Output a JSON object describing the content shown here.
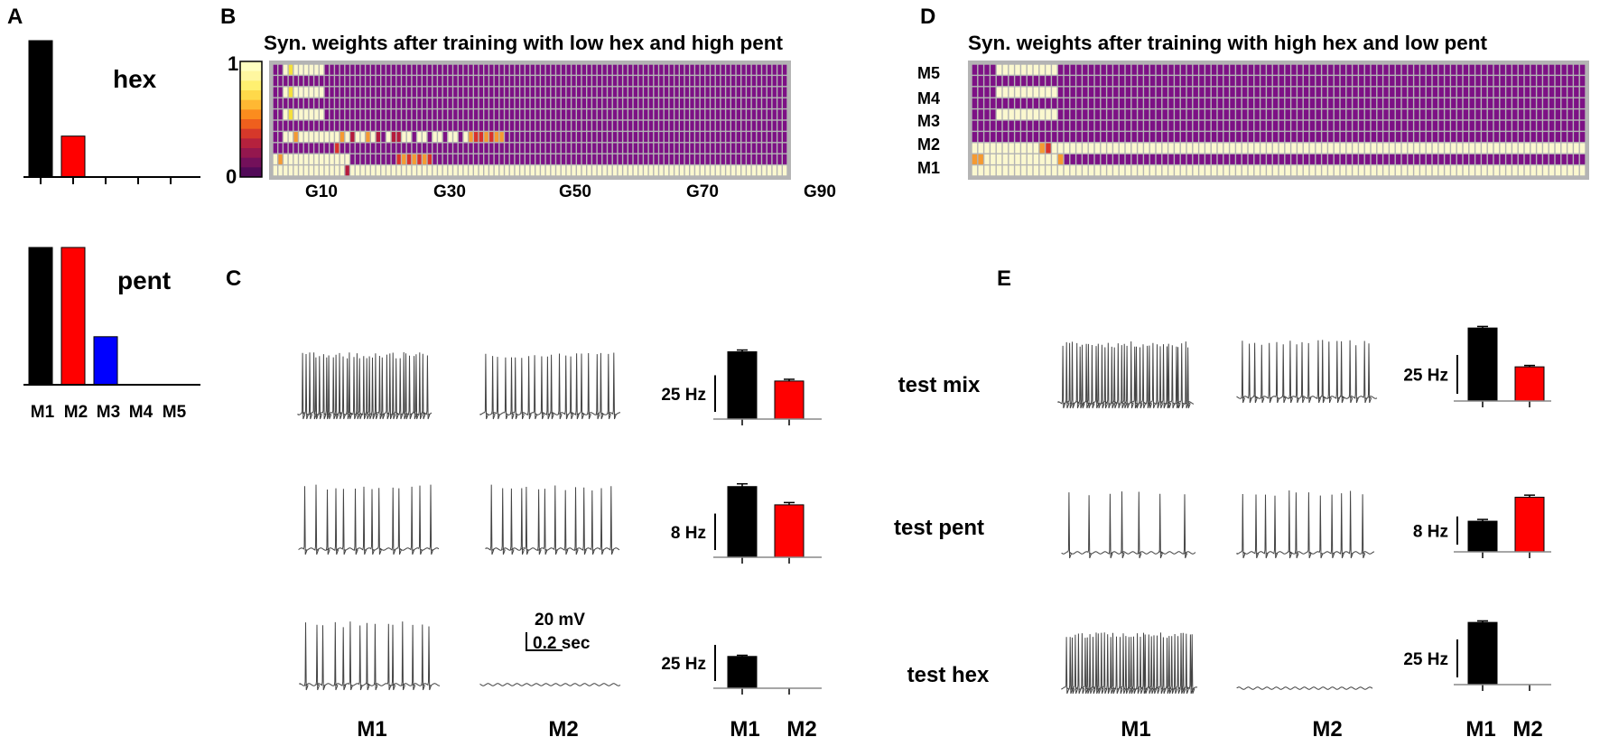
{
  "panels": {
    "A": {
      "label": "A",
      "categories": [
        "M1",
        "M2",
        "M3",
        "M4",
        "M5"
      ],
      "hex": {
        "title": "hex",
        "values": [
          1.0,
          0.3,
          0,
          0,
          0
        ],
        "colors": [
          "#000000",
          "#ff0000",
          "#0000ff",
          "#000000",
          "#000000"
        ]
      },
      "pent": {
        "title": "pent",
        "values": [
          1.0,
          1.0,
          0.35,
          0,
          0
        ],
        "colors": [
          "#000000",
          "#ff0000",
          "#0000ff",
          "#000000",
          "#000000"
        ]
      }
    },
    "B": {
      "label": "B",
      "title": "Syn. weights after training with low hex and high pent",
      "colorbar": {
        "max_label": "1",
        "min_label": "0"
      },
      "x_ticks": [
        "G10",
        "G30",
        "G50",
        "G70",
        "G90"
      ]
    },
    "C": {
      "label": "C"
    },
    "D": {
      "label": "D",
      "title": "Syn. weights after training with high hex and low pent",
      "row_labels": [
        "M5",
        "M4",
        "M3",
        "M2",
        "M1"
      ]
    },
    "E": {
      "label": "E"
    }
  },
  "traces": {
    "scale_voltage": "20 mV",
    "scale_time": "0.2 sec",
    "col_labels": [
      "M1",
      "M2"
    ]
  },
  "tests": [
    {
      "label": "test mix"
    },
    {
      "label": "test  pent"
    },
    {
      "label": "test hex"
    }
  ],
  "chart_data": [
    {
      "type": "bar",
      "panel": "A-hex",
      "title": "hex",
      "categories": [
        "M1",
        "M2",
        "M3",
        "M4",
        "M5"
      ],
      "values": [
        1.0,
        0.3,
        0,
        0,
        0
      ]
    },
    {
      "type": "bar",
      "panel": "A-pent",
      "title": "pent",
      "categories": [
        "M1",
        "M2",
        "M3",
        "M4",
        "M5"
      ],
      "values": [
        1.0,
        1.0,
        0.35,
        0,
        0
      ]
    },
    {
      "type": "heatmap",
      "panel": "B",
      "title": "Syn. weights after training with low hex and high pent",
      "x_ticks": [
        "G10",
        "G30",
        "G50",
        "G70",
        "G90"
      ],
      "colorbar_range": [
        0,
        1
      ]
    },
    {
      "type": "heatmap",
      "panel": "D",
      "title": "Syn. weights after training with high hex and low pent",
      "rows": [
        "M5",
        "M4",
        "M3",
        "M2",
        "M1"
      ]
    },
    {
      "type": "bar",
      "panel": "C",
      "test": "test mix",
      "categories": [
        "M1",
        "M2"
      ],
      "values": [
        46,
        26
      ],
      "errors": [
        1.2,
        1.2
      ],
      "scale_label": "25 Hz",
      "scale_value": 25
    },
    {
      "type": "bar",
      "panel": "C",
      "test": "test pent",
      "categories": [
        "M1",
        "M2"
      ],
      "values": [
        15.5,
        11.5
      ],
      "errors": [
        0.6,
        0.5
      ],
      "scale_label": "8 Hz",
      "scale_value": 8
    },
    {
      "type": "bar",
      "panel": "C",
      "test": "test hex",
      "categories": [
        "M1",
        "M2"
      ],
      "values": [
        22,
        0
      ],
      "errors": [
        0.8,
        0
      ],
      "scale_label": "25 Hz",
      "scale_value": 25
    },
    {
      "type": "bar",
      "panel": "E",
      "test": "test mix",
      "categories": [
        "M1",
        "M2"
      ],
      "values": [
        47,
        22
      ],
      "errors": [
        1.0,
        0.9
      ],
      "scale_label": "25 Hz",
      "scale_value": 25
    },
    {
      "type": "bar",
      "panel": "E",
      "test": "test pent",
      "categories": [
        "M1",
        "M2"
      ],
      "values": [
        8.7,
        15.5
      ],
      "errors": [
        0.5,
        0.6
      ],
      "scale_label": "8 Hz",
      "scale_value": 8
    },
    {
      "type": "bar",
      "panel": "E",
      "test": "test hex",
      "categories": [
        "M1",
        "M2"
      ],
      "values": [
        41,
        0
      ],
      "errors": [
        1.0,
        0
      ],
      "scale_label": "25 Hz",
      "scale_value": 25
    }
  ]
}
